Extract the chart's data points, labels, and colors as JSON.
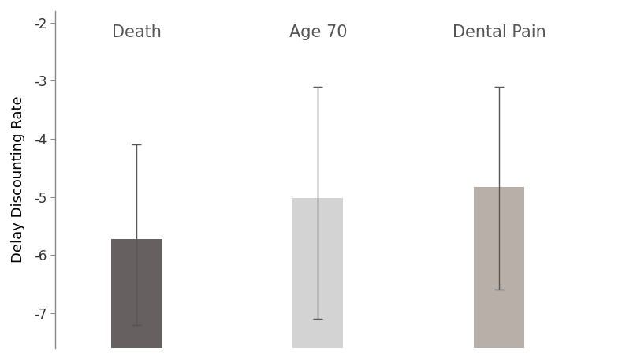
{
  "categories": [
    "Death",
    "Age 70",
    "Dental Pain"
  ],
  "values": [
    -5.72,
    -5.02,
    -4.83
  ],
  "error_upper": [
    1.62,
    1.92,
    1.73
  ],
  "error_lower": [
    1.48,
    2.08,
    1.77
  ],
  "bar_colors": [
    "#666060",
    "#d3d3d3",
    "#b8b0a8"
  ],
  "bar_width": 0.28,
  "label_color": "#555555",
  "ylabel": "Delay Discounting Rate",
  "ylim": [
    -7.6,
    -1.8
  ],
  "yticks": [
    -7,
    -6,
    -5,
    -4,
    -3,
    -2
  ],
  "label_fontsize": 15,
  "ylabel_fontsize": 13,
  "tick_fontsize": 12,
  "background_color": "#ffffff",
  "error_color": "#555555",
  "error_linewidth": 1.0,
  "capsize": 4,
  "x_positions": [
    1,
    2,
    3
  ],
  "xlim": [
    0.55,
    3.7
  ]
}
